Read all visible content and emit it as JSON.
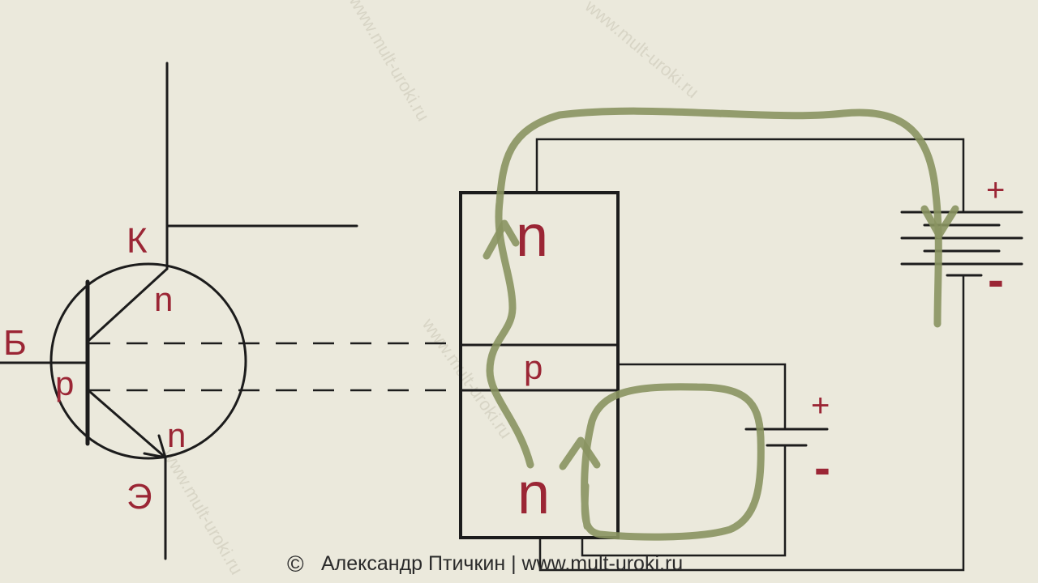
{
  "symbol": {
    "collector_letter": "К",
    "base_letter": "Б",
    "emitter_letter": "Э",
    "collector_region": "n",
    "base_region": "p",
    "emitter_region": "n"
  },
  "structure": {
    "top_region": "n",
    "middle_region": "p",
    "bottom_region": "n"
  },
  "batteries": {
    "collector_plus": "+",
    "collector_minus": "-",
    "base_plus": "+",
    "base_minus": "-"
  },
  "watermark": "www.mult-uroki.ru",
  "footer": {
    "copyright_symbol": "©",
    "text": "Александр Птичкин | www.mult-uroki.ru"
  },
  "colors": {
    "background": "#ebe9dc",
    "label": "#9b2635",
    "current_flow": "#8a9461",
    "lines": "#1c1c1c"
  }
}
